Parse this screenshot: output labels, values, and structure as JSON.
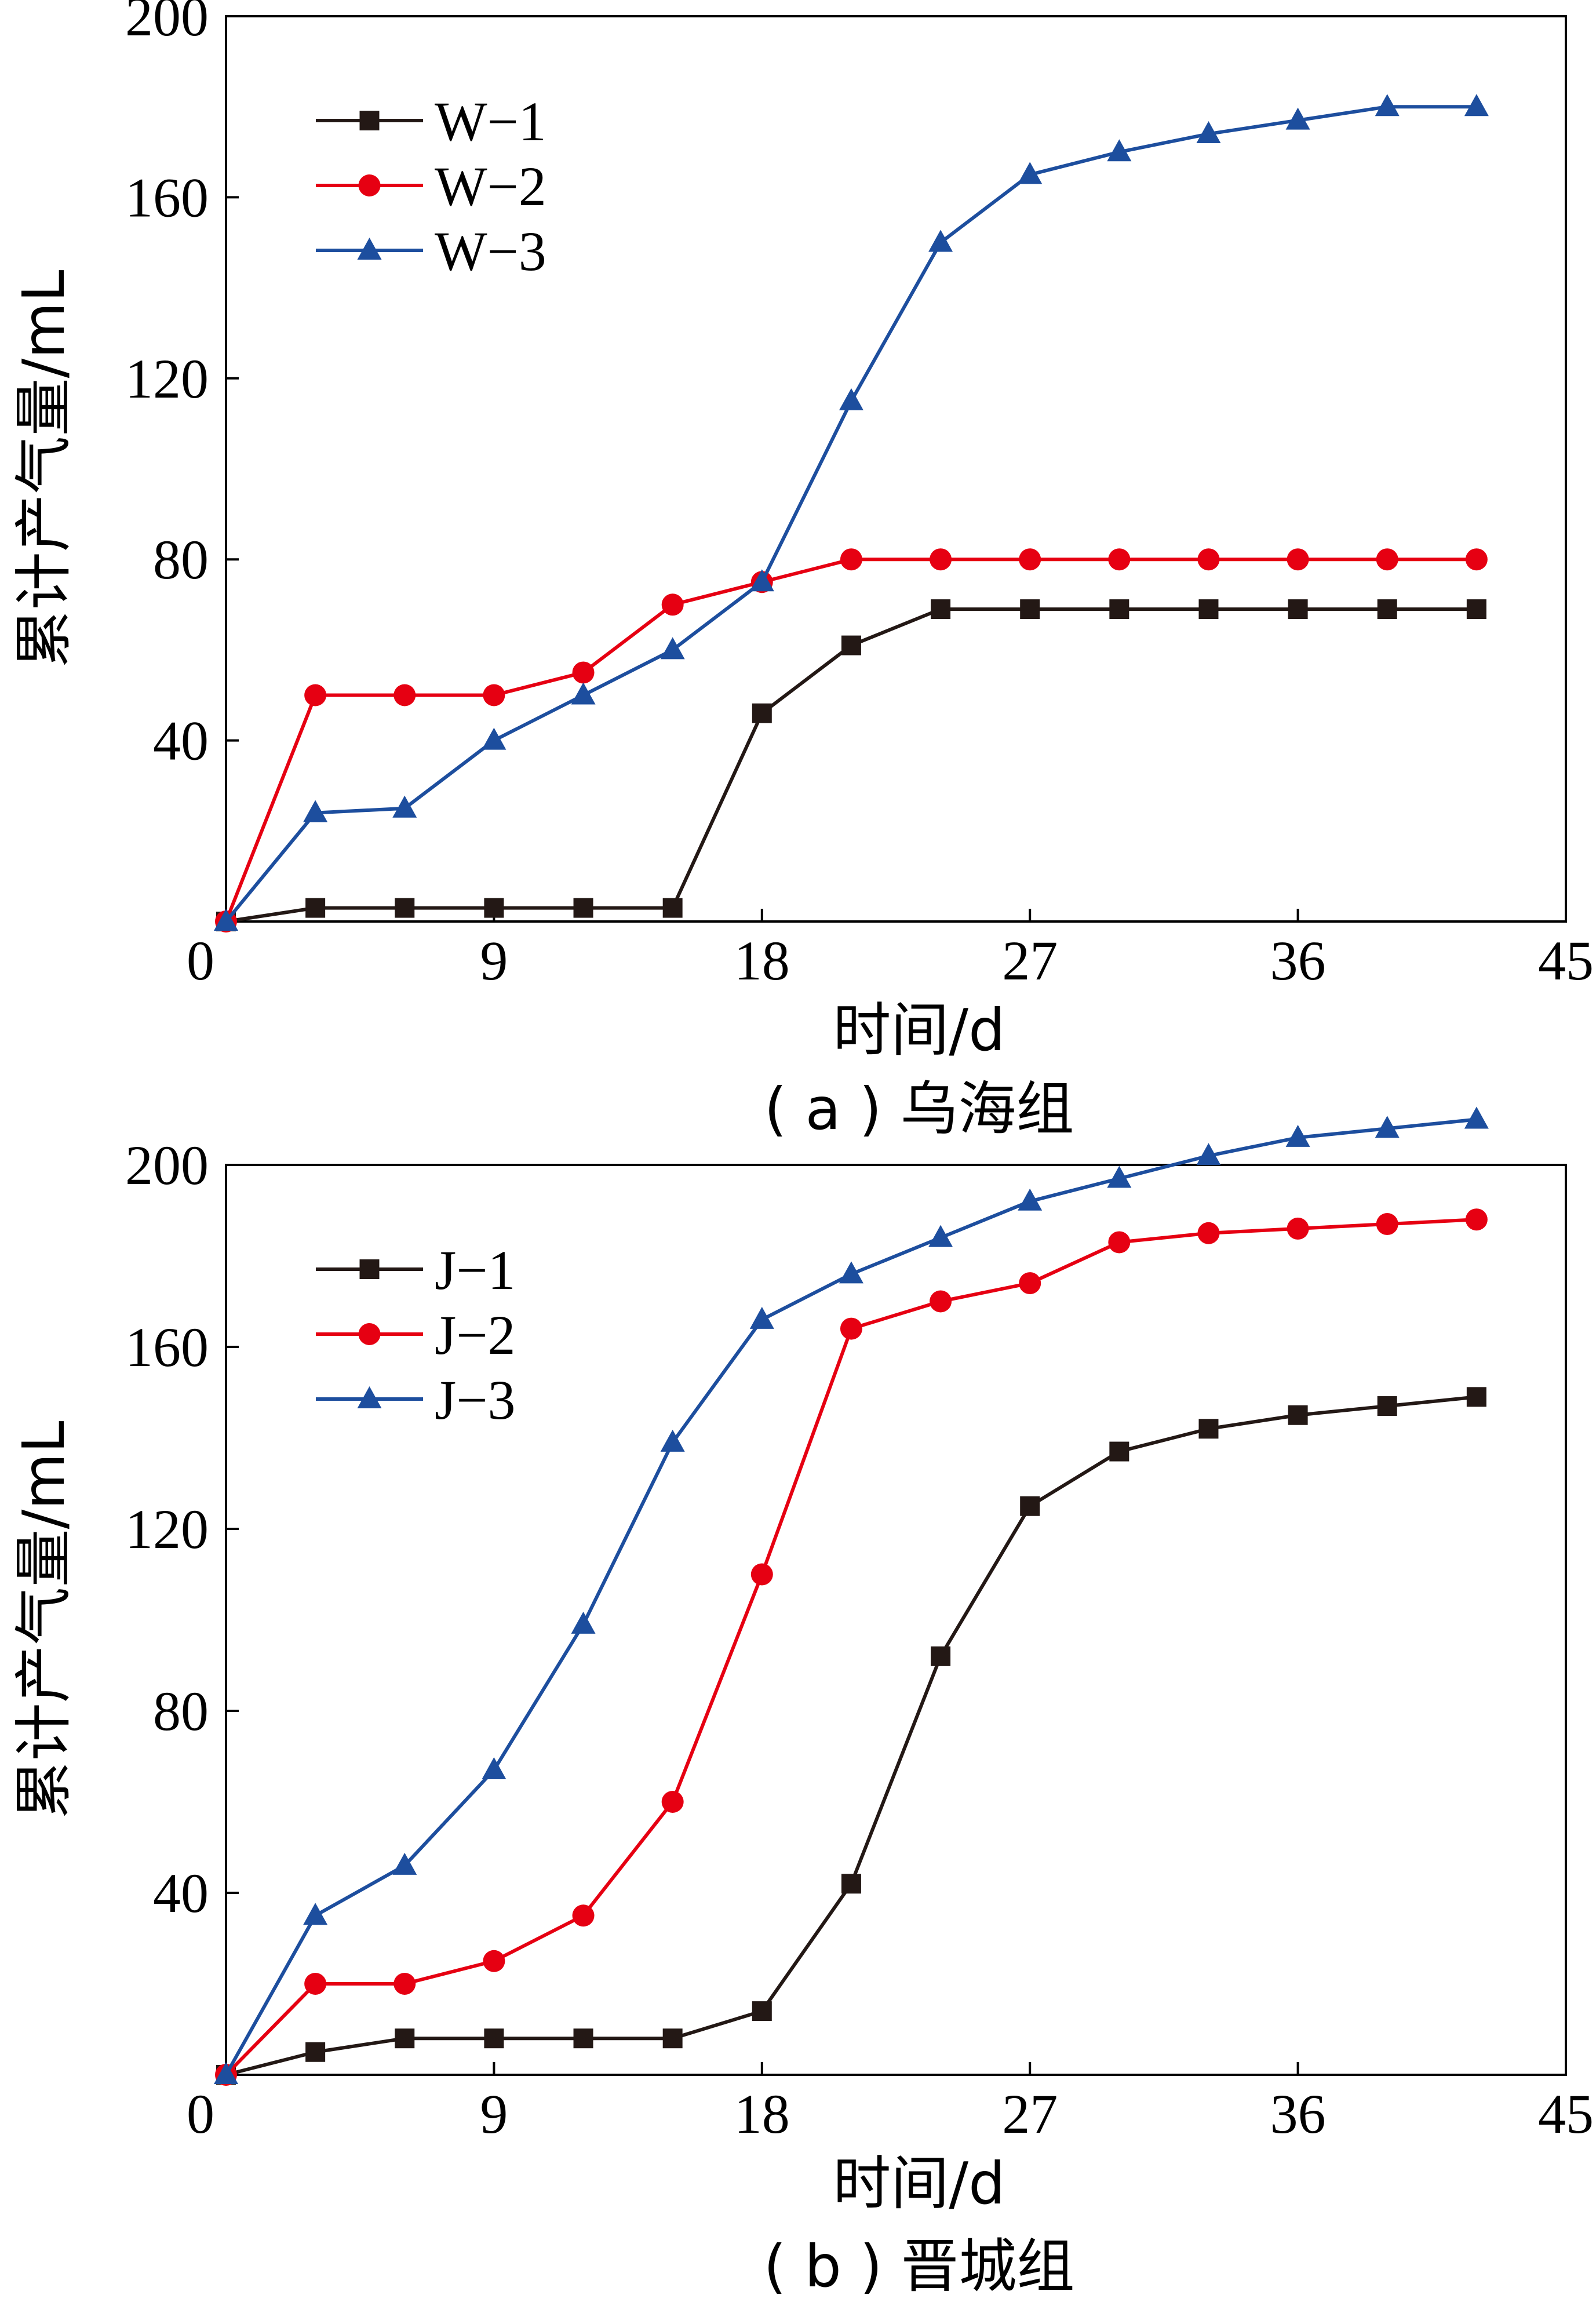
{
  "chart_data": [
    {
      "type": "line",
      "panel_caption": "( a ) 乌海组",
      "xlabel": "时间/d",
      "ylabel": "累计产气量/mL",
      "xlim": [
        0,
        45
      ],
      "ylim": [
        0,
        200
      ],
      "x_ticks": [
        0,
        9,
        18,
        27,
        36,
        45
      ],
      "y_ticks": [
        40,
        80,
        120,
        160,
        200
      ],
      "legend_position": "top-left",
      "x": [
        0,
        3,
        6,
        9,
        12,
        15,
        18,
        21,
        24,
        27,
        30,
        33,
        36,
        39,
        42
      ],
      "series": [
        {
          "name": "W−1",
          "color": "#231815",
          "marker": "square",
          "values": [
            0,
            3,
            3,
            3,
            3,
            3,
            46,
            61,
            69,
            69,
            69,
            69,
            69,
            69,
            69
          ]
        },
        {
          "name": "W−2",
          "color": "#e60012",
          "marker": "circle",
          "values": [
            0,
            50,
            50,
            50,
            55,
            70,
            75,
            80,
            80,
            80,
            80,
            80,
            80,
            80,
            80
          ]
        },
        {
          "name": "W−3",
          "color": "#1d4e9e",
          "marker": "triangle",
          "values": [
            0,
            24,
            25,
            40,
            50,
            60,
            75,
            115,
            150,
            165,
            170,
            174,
            177,
            180,
            180
          ]
        }
      ]
    },
    {
      "type": "line",
      "panel_caption": "( b ) 晋城组",
      "xlabel": "时间/d",
      "ylabel": "累计产气量/mL",
      "xlim": [
        0,
        45
      ],
      "ylim": [
        0,
        200
      ],
      "x_ticks": [
        0,
        9,
        18,
        27,
        36,
        45
      ],
      "y_ticks": [
        40,
        80,
        120,
        160,
        200
      ],
      "legend_position": "top-left",
      "x": [
        0,
        3,
        6,
        9,
        12,
        15,
        18,
        21,
        24,
        27,
        30,
        33,
        36,
        39,
        42
      ],
      "series": [
        {
          "name": "J−1",
          "color": "#231815",
          "marker": "square",
          "values": [
            0,
            5,
            8,
            8,
            8,
            8,
            14,
            42,
            92,
            125,
            137,
            142,
            145,
            147,
            149
          ]
        },
        {
          "name": "J−2",
          "color": "#e60012",
          "marker": "circle",
          "values": [
            0,
            20,
            20,
            25,
            35,
            60,
            110,
            164,
            170,
            174,
            183,
            185,
            186,
            187,
            188
          ]
        },
        {
          "name": "J−3",
          "color": "#1d4e9e",
          "marker": "triangle",
          "values": [
            0,
            35,
            46,
            67,
            99,
            139,
            166,
            176,
            184,
            192,
            197,
            202,
            206,
            208,
            210
          ]
        }
      ]
    }
  ]
}
